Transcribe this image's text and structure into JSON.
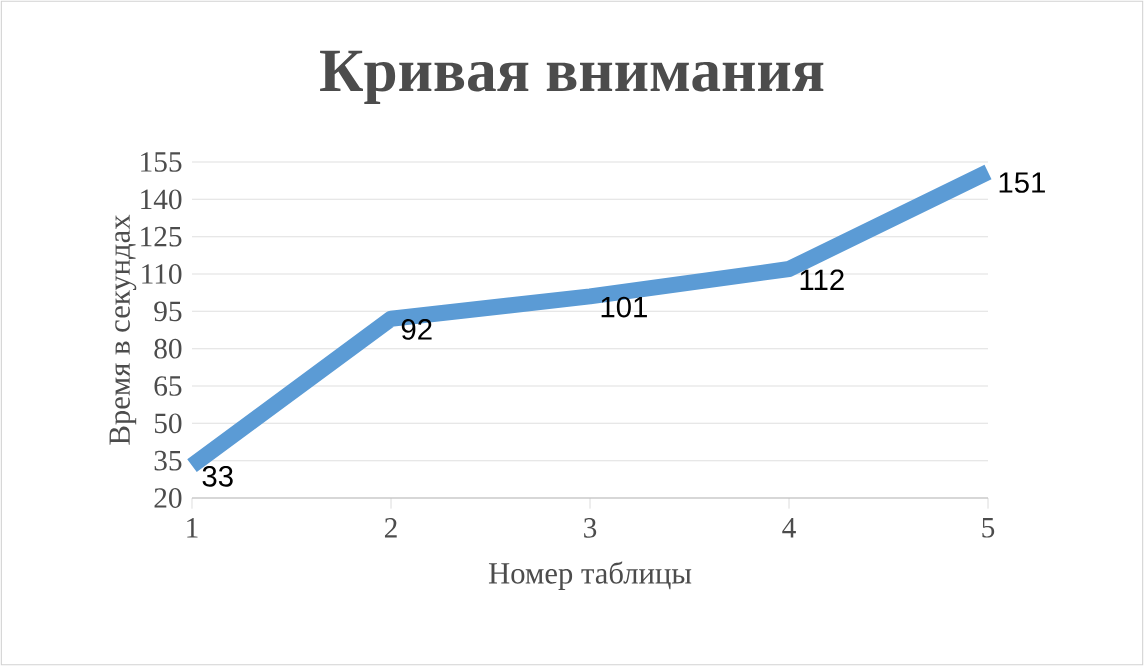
{
  "chart_data": {
    "type": "line",
    "title": "Кривая внимания",
    "xlabel": "Номер таблицы",
    "ylabel": "Время в секундах",
    "x": [
      1,
      2,
      3,
      4,
      5
    ],
    "series": [
      {
        "color": "#5b9bd5",
        "values": [
          33,
          92,
          101,
          112,
          151
        ]
      }
    ],
    "xlim": [
      1,
      5
    ],
    "xticks": [
      1,
      2,
      3,
      4,
      5
    ],
    "ylim": [
      20,
      155
    ],
    "yticks": [
      20,
      35,
      50,
      65,
      80,
      95,
      110,
      125,
      140,
      155
    ],
    "grid": "y",
    "data_labels": true,
    "marker": "none",
    "line_style": "solid"
  }
}
